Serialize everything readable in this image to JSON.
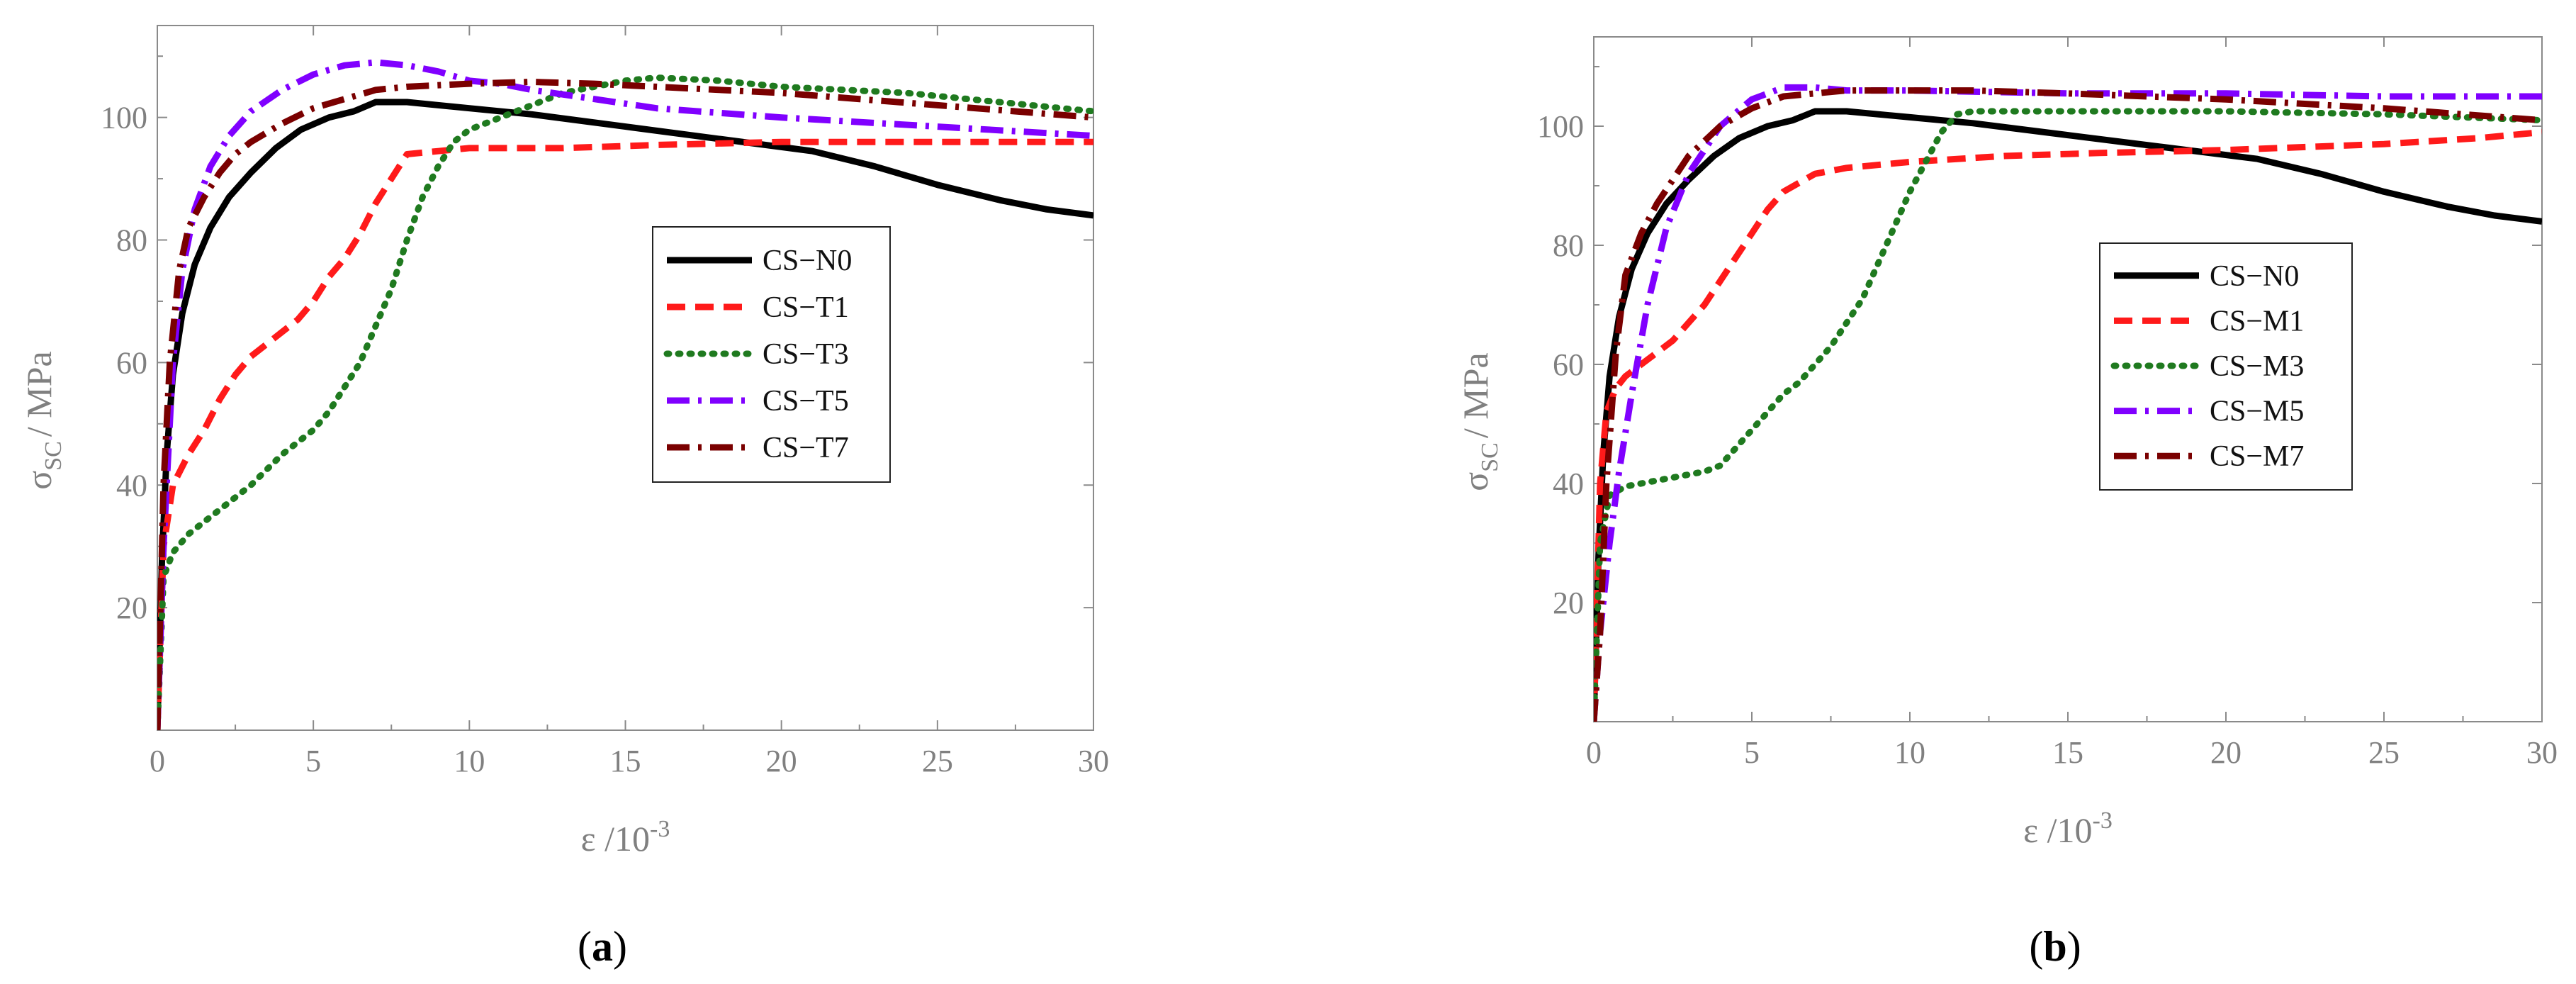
{
  "chart_data": [
    {
      "type": "line",
      "panel_label": "a",
      "xlabel_main": "ε /10",
      "xlabel_sup": "-3",
      "ylabel_main": "σ",
      "ylabel_sub": "SC",
      "ylabel_unit": "/ MPa",
      "xlim": [
        0,
        30
      ],
      "ylim": [
        0,
        115
      ],
      "xticks": [
        0,
        5,
        10,
        15,
        20,
        25,
        30
      ],
      "yticks": [
        20,
        40,
        60,
        80,
        100
      ],
      "legend_position": "center-right",
      "series": [
        {
          "name": "CS−N0",
          "color": "#000000",
          "dash": "solid",
          "x": [
            0,
            0.15,
            0.3,
            0.5,
            0.8,
            1.2,
            1.7,
            2.3,
            3,
            3.8,
            4.6,
            5.5,
            6.3,
            7,
            8,
            10,
            12,
            15,
            18,
            21,
            23,
            25,
            27,
            28.5,
            30
          ],
          "y": [
            0,
            28,
            45,
            58,
            68,
            76,
            82,
            87,
            91,
            95,
            98,
            100,
            101,
            102.5,
            102.5,
            101.5,
            100.5,
            98.5,
            96.5,
            94.5,
            92,
            89,
            86.5,
            85,
            84
          ]
        },
        {
          "name": "CS−T1",
          "color": "#ff1a1a",
          "dash": "dashed",
          "x": [
            0,
            0.2,
            0.5,
            1,
            1.5,
            2,
            2.5,
            3,
            3.5,
            4,
            4.5,
            5,
            5.5,
            6,
            6.5,
            7,
            7.5,
            8,
            9,
            10,
            13,
            16,
            20,
            25,
            30
          ],
          "y": [
            0,
            30,
            40,
            45,
            49,
            54,
            58,
            61,
            63,
            65,
            67,
            70,
            74,
            77,
            81,
            86,
            90,
            94,
            94.5,
            95,
            95,
            95.5,
            96,
            96,
            96
          ]
        },
        {
          "name": "CS−T3",
          "color": "#1f7a1f",
          "dash": "dotted",
          "x": [
            0,
            0.2,
            0.5,
            1,
            2,
            3,
            4,
            5,
            5.5,
            6,
            6.5,
            7,
            7.5,
            8,
            8.5,
            9,
            9.5,
            10,
            11,
            12,
            13,
            14,
            15,
            16,
            18,
            20,
            24,
            28,
            30
          ],
          "y": [
            0,
            25,
            29,
            32,
            36,
            40,
            45,
            49,
            52,
            56,
            60,
            66,
            72,
            80,
            87,
            92,
            96,
            98,
            100,
            102,
            104,
            105,
            106,
            106.5,
            106,
            105,
            104,
            102,
            101
          ]
        },
        {
          "name": "CS−T5",
          "color": "#8000ff",
          "dash": "dashdot",
          "x": [
            0,
            0.2,
            0.5,
            0.8,
            1.2,
            1.7,
            2.3,
            3,
            4,
            5,
            6,
            7,
            8,
            9,
            10,
            11,
            12,
            14,
            16,
            20,
            25,
            30
          ],
          "y": [
            0,
            30,
            60,
            75,
            85,
            92,
            97,
            101,
            104.5,
            107,
            108.5,
            109,
            108.5,
            107.5,
            106,
            105.5,
            104.5,
            103,
            101.5,
            100,
            98.5,
            97
          ]
        },
        {
          "name": "CS−T7",
          "color": "#7a0000",
          "dash": "dashdot",
          "x": [
            0,
            0.2,
            0.4,
            0.7,
            1,
            1.5,
            2,
            2.5,
            3,
            4,
            5,
            6,
            7,
            8,
            10,
            12,
            14,
            16,
            20,
            25,
            30
          ],
          "y": [
            0,
            40,
            60,
            75,
            82,
            87,
            91,
            94,
            96,
            99,
            101.5,
            103,
            104.5,
            105,
            105.5,
            105.8,
            105.5,
            105,
            104,
            102,
            100
          ]
        }
      ]
    },
    {
      "type": "line",
      "panel_label": "b",
      "xlabel_main": "ε /10",
      "xlabel_sup": "-3",
      "ylabel_main": "σ",
      "ylabel_sub": "SC",
      "ylabel_unit": "/ MPa",
      "xlim": [
        0,
        30
      ],
      "ylim": [
        0,
        115
      ],
      "xticks": [
        0,
        5,
        10,
        15,
        20,
        25,
        30
      ],
      "yticks": [
        20,
        40,
        60,
        80,
        100
      ],
      "legend_position": "center-right",
      "series": [
        {
          "name": "CS−N0",
          "color": "#000000",
          "dash": "solid",
          "x": [
            0,
            0.15,
            0.3,
            0.5,
            0.8,
            1.2,
            1.7,
            2.3,
            3,
            3.8,
            4.6,
            5.5,
            6.3,
            7,
            8,
            10,
            12,
            15,
            18,
            21,
            23,
            25,
            27,
            28.5,
            30
          ],
          "y": [
            0,
            28,
            45,
            58,
            68,
            76,
            82,
            87,
            91,
            95,
            98,
            100,
            101,
            102.5,
            102.5,
            101.5,
            100.5,
            98.5,
            96.5,
            94.5,
            92,
            89,
            86.5,
            85,
            84
          ]
        },
        {
          "name": "CS−M1",
          "color": "#ff1a1a",
          "dash": "dashed",
          "x": [
            0,
            0.2,
            0.4,
            0.7,
            1,
            1.5,
            2,
            2.5,
            3,
            3.5,
            4,
            4.5,
            5,
            5.5,
            6,
            7,
            8,
            10,
            13,
            16,
            20,
            25,
            28,
            30
          ],
          "y": [
            0,
            40,
            52,
            56,
            58,
            60,
            62,
            64,
            67,
            70,
            74,
            78,
            82,
            86,
            89,
            92,
            93,
            94,
            95,
            95.5,
            96,
            97,
            98,
            99
          ]
        },
        {
          "name": "CS−M3",
          "color": "#1f7a1f",
          "dash": "dotted",
          "x": [
            0,
            0.2,
            0.5,
            1,
            2,
            3,
            3.5,
            4,
            4.5,
            5,
            5.5,
            6,
            6.5,
            7,
            7.5,
            8,
            8.5,
            9,
            9.5,
            10,
            10.5,
            11,
            11.5,
            12,
            15,
            20,
            25,
            30
          ],
          "y": [
            0,
            30,
            38,
            39.5,
            40.5,
            41.5,
            42,
            43,
            46,
            49,
            52,
            55,
            57,
            60,
            63,
            67,
            71,
            77,
            83,
            89,
            94,
            99,
            102,
            102.5,
            102.5,
            102.5,
            102,
            101
          ]
        },
        {
          "name": "CS−M5",
          "color": "#8000ff",
          "dash": "dashdot",
          "x": [
            0,
            0.2,
            0.5,
            0.8,
            1.2,
            1.7,
            2.3,
            3,
            4,
            5,
            6,
            7,
            8,
            10,
            15,
            20,
            25,
            30
          ],
          "y": [
            0,
            15,
            30,
            42,
            55,
            70,
            83,
            92,
            100,
            104.5,
            106.5,
            106.5,
            106,
            106,
            105.5,
            105.5,
            105,
            105
          ]
        },
        {
          "name": "CS−M7",
          "color": "#7a0000",
          "dash": "dashdot",
          "x": [
            0,
            0.2,
            0.4,
            0.7,
            1,
            1.5,
            2,
            2.5,
            3,
            4,
            5,
            6,
            7,
            8,
            10,
            12,
            15,
            20,
            25,
            30
          ],
          "y": [
            0,
            15,
            40,
            62,
            75,
            82,
            87,
            91,
            95,
            100,
            103,
            105,
            105.5,
            106,
            106,
            106,
            105.5,
            104.5,
            103,
            101
          ]
        }
      ]
    }
  ]
}
